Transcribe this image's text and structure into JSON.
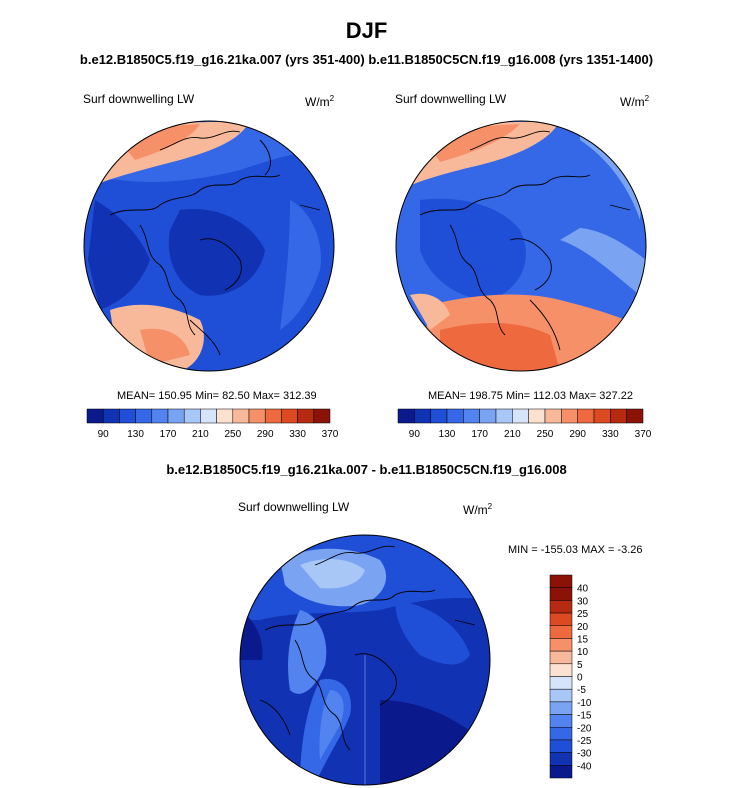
{
  "page": {
    "title": "DJF",
    "subtitle_left": "b.e12.B1850C5.f19_g16.21ka.007 (yrs 351-400)",
    "subtitle_right": "b.e11.B1850C5CN.f19_g16.008 (yrs 1351-1400)",
    "diff_title": "b.e12.B1850C5.f19_g16.21ka.007 - b.e11.B1850C5CN.f19_g16.008"
  },
  "colors": {
    "abs_scale": [
      "#0a1a8c",
      "#1232b4",
      "#1e4fd6",
      "#3568e6",
      "#5283ee",
      "#7aa3f2",
      "#a8c6f6",
      "#d6e4fb",
      "#fbe1d0",
      "#f8b99a",
      "#f59069",
      "#ee6a3e",
      "#dc4a22",
      "#b52a10",
      "#8a1206"
    ],
    "diff_scale": [
      "#0a1a8c",
      "#1232b4",
      "#1e4fd6",
      "#3568e6",
      "#5283ee",
      "#7aa3f2",
      "#a8c6f6",
      "#d6e4fb",
      "#fbe1d0",
      "#f8b99a",
      "#f59069",
      "#ee6a3e",
      "#dc4a22",
      "#b52a10",
      "#8a1206"
    ]
  },
  "chart_data": [
    {
      "type": "heatmap",
      "projection": "polar stereographic (Arctic)",
      "label": "Surf downwelling LW",
      "units": "W/m",
      "units_exp": "2",
      "stats": {
        "mean": "150.95",
        "min": "82.50",
        "max": "312.39"
      },
      "stats_text": "MEAN= 150.95  Min=  82.50  Max= 312.39",
      "colorbar_ticks": [
        "90",
        "130",
        "170",
        "210",
        "250",
        "290",
        "330",
        "370"
      ]
    },
    {
      "type": "heatmap",
      "projection": "polar stereographic (Arctic)",
      "label": "Surf downwelling LW",
      "units": "W/m",
      "units_exp": "2",
      "stats": {
        "mean": "198.75",
        "min": "112.03",
        "max": "327.22"
      },
      "stats_text": "MEAN= 198.75  Min= 112.03  Max= 327.22",
      "colorbar_ticks": [
        "90",
        "130",
        "170",
        "210",
        "250",
        "290",
        "330",
        "370"
      ]
    },
    {
      "type": "heatmap",
      "projection": "polar stereographic (Arctic)",
      "label": "Surf downwelling LW",
      "units": "W/m",
      "units_exp": "2",
      "stats": {
        "min": "-155.03",
        "max": "-3.26"
      },
      "stats_text": "MIN = -155.03 MAX =  -3.26",
      "colorbar_ticks": [
        "40",
        "30",
        "25",
        "20",
        "15",
        "10",
        "5",
        "0",
        "-5",
        "-10",
        "-15",
        "-20",
        "-25",
        "-30",
        "-40"
      ]
    }
  ]
}
